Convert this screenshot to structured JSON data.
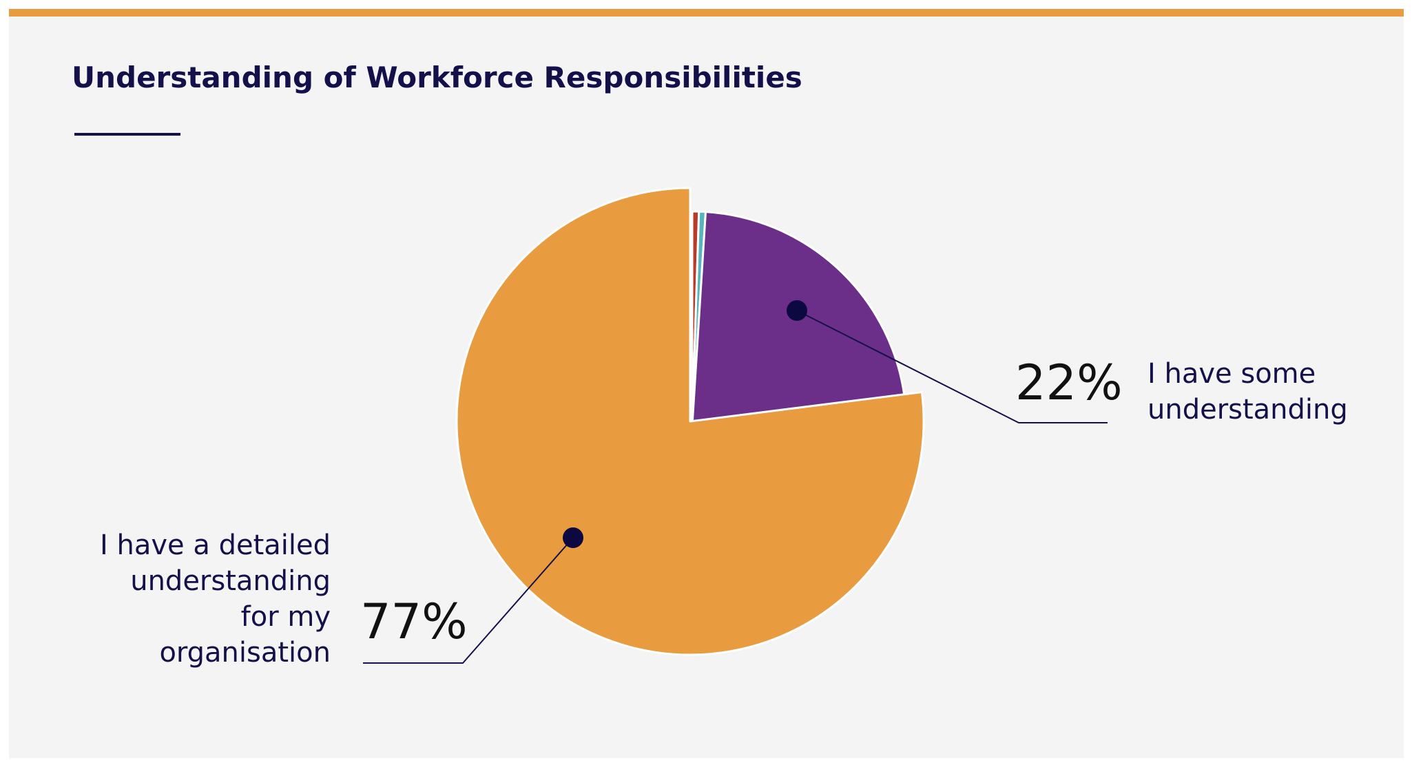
{
  "chart_data": {
    "type": "pie",
    "title": "Understanding of Workforce Responsibilities",
    "slices": [
      {
        "label": "",
        "value": 0.5,
        "color": "#b83a2c",
        "value_label": ""
      },
      {
        "label": "",
        "value": 0.5,
        "color": "#5ab4c0",
        "value_label": ""
      },
      {
        "label": "I have some understanding",
        "value": 22,
        "color": "#6b2f8a",
        "value_label": "22%"
      },
      {
        "label": "I have a detailed understanding for my organisation",
        "value": 77,
        "color": "#e89b3f",
        "value_label": "77%"
      }
    ]
  },
  "colors": {
    "accent_bar": "#e89b3f",
    "title": "#13104a",
    "background": "#f4f4f4"
  }
}
